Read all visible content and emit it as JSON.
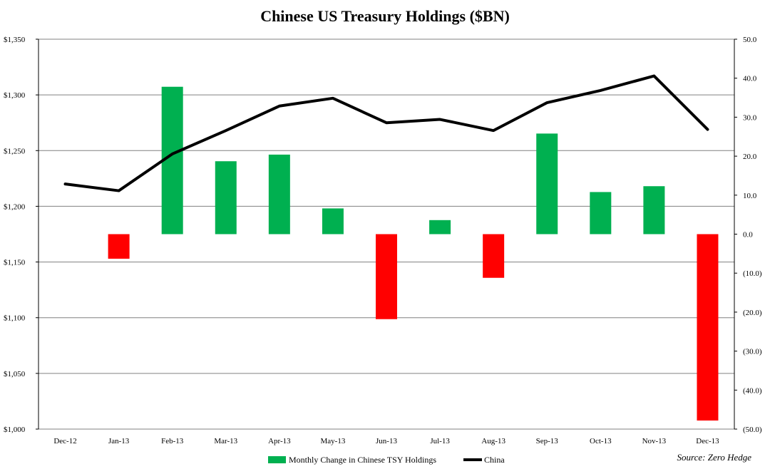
{
  "chart_data": {
    "type": "bar+line",
    "title": "Chinese US Treasury Holdings ($BN)",
    "source": "Source: Zero Hedge",
    "categories": [
      "Dec-12",
      "Jan-13",
      "Feb-13",
      "Mar-13",
      "Apr-13",
      "May-13",
      "Jun-13",
      "Jul-13",
      "Aug-13",
      "Sep-13",
      "Oct-13",
      "Nov-13",
      "Dec-13"
    ],
    "left_axis": {
      "ticks": [
        1000,
        1050,
        1100,
        1150,
        1200,
        1250,
        1300,
        1350
      ],
      "tick_labels": [
        "$1,000",
        "$1,050",
        "$1,100",
        "$1,150",
        "$1,200",
        "$1,250",
        "$1,300",
        "$1,350"
      ],
      "ylim": [
        1000,
        1350
      ]
    },
    "right_axis": {
      "ticks": [
        50,
        40,
        30,
        20,
        10,
        0,
        -10,
        -20,
        -30,
        -40,
        -50
      ],
      "tick_labels": [
        "50.0",
        "40.0",
        "30.0",
        "20.0",
        "10.0",
        "0.0",
        "(10.0)",
        "(20.0)",
        "(30.0)",
        "(40.0)",
        "(50.0)"
      ],
      "ylim": [
        -50,
        50
      ]
    },
    "series": [
      {
        "name": "Monthly Change in Chinese TSY Holdings",
        "kind": "bar",
        "axis": "right",
        "values": [
          null,
          -6.3,
          37.8,
          18.7,
          20.4,
          6.6,
          -21.8,
          3.6,
          -11.2,
          25.8,
          10.8,
          12.3,
          -47.8
        ]
      },
      {
        "name": "China",
        "kind": "line",
        "axis": "left",
        "values": [
          1220,
          1214,
          1247,
          1268,
          1290,
          1297,
          1275,
          1278,
          1268,
          1293,
          1304,
          1317,
          1269
        ]
      }
    ],
    "grid": "horizontal",
    "legend_position": "bottom"
  },
  "colors": {
    "positive": "#00b050",
    "negative": "#ff0000",
    "line": "#000000",
    "grid": "#808080",
    "negative_tick": "#ff0000"
  }
}
